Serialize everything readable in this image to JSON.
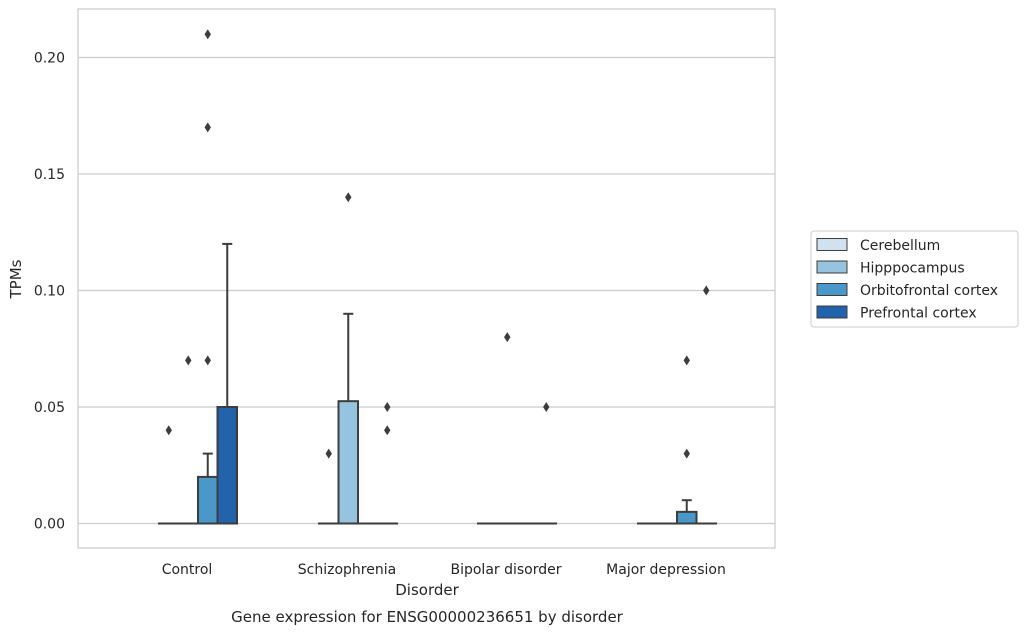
{
  "chart_data": {
    "type": "box",
    "title": "",
    "caption": "Gene expression for ENSG00000236651 by disorder",
    "xlabel": "Disorder",
    "ylabel": "TPMs",
    "ylim": [
      -0.01,
      0.22
    ],
    "yticks": [
      0.0,
      0.05,
      0.1,
      0.15,
      0.2
    ],
    "ytick_labels": [
      "0.00",
      "0.05",
      "0.10",
      "0.15",
      "0.20"
    ],
    "grid": "horizontal",
    "legend_position": "right",
    "categories": [
      "Control",
      "Schizophrenia",
      "Bipolar disorder",
      "Major depression"
    ],
    "series": [
      {
        "name": "Cerebellum",
        "color": "#d0e1f2",
        "boxes": [
          {
            "q1": 0,
            "median": 0,
            "q3": 0,
            "whisker_low": 0,
            "whisker_high": 0,
            "outliers": [
              0.04
            ]
          },
          {
            "q1": 0,
            "median": 0,
            "q3": 0,
            "whisker_low": 0,
            "whisker_high": 0,
            "outliers": [
              0.03
            ]
          },
          {
            "q1": 0,
            "median": 0,
            "q3": 0,
            "whisker_low": 0,
            "whisker_high": 0,
            "outliers": []
          },
          {
            "q1": 0,
            "median": 0,
            "q3": 0,
            "whisker_low": 0,
            "whisker_high": 0,
            "outliers": []
          }
        ]
      },
      {
        "name": "Hipppocampus",
        "color": "#94c4df",
        "boxes": [
          {
            "q1": 0,
            "median": 0,
            "q3": 0,
            "whisker_low": 0,
            "whisker_high": 0,
            "outliers": [
              0.07
            ]
          },
          {
            "q1": 0,
            "median": 0,
            "q3": 0.0525,
            "whisker_low": 0,
            "whisker_high": 0.09,
            "outliers": [
              0.14
            ]
          },
          {
            "q1": 0,
            "median": 0,
            "q3": 0,
            "whisker_low": 0,
            "whisker_high": 0,
            "outliers": [
              0.08
            ]
          },
          {
            "q1": 0,
            "median": 0,
            "q3": 0,
            "whisker_low": 0,
            "whisker_high": 0,
            "outliers": []
          }
        ]
      },
      {
        "name": "Orbitofrontal cortex",
        "color": "#4a98c9",
        "boxes": [
          {
            "q1": 0,
            "median": 0,
            "q3": 0.02,
            "whisker_low": 0,
            "whisker_high": 0.03,
            "outliers": [
              0.07,
              0.17,
              0.21
            ]
          },
          {
            "q1": 0,
            "median": 0,
            "q3": 0,
            "whisker_low": 0,
            "whisker_high": 0,
            "outliers": []
          },
          {
            "q1": 0,
            "median": 0,
            "q3": 0,
            "whisker_low": 0,
            "whisker_high": 0,
            "outliers": []
          },
          {
            "q1": 0,
            "median": 0,
            "q3": 0.005,
            "whisker_low": 0,
            "whisker_high": 0.01,
            "outliers": [
              0.03,
              0.07
            ]
          }
        ]
      },
      {
        "name": "Prefrontal cortex",
        "color": "#2164ab",
        "boxes": [
          {
            "q1": 0,
            "median": 0,
            "q3": 0.05,
            "whisker_low": 0,
            "whisker_high": 0.12,
            "outliers": []
          },
          {
            "q1": 0,
            "median": 0,
            "q3": 0,
            "whisker_low": 0,
            "whisker_high": 0,
            "outliers": [
              0.04,
              0.05
            ]
          },
          {
            "q1": 0,
            "median": 0,
            "q3": 0,
            "whisker_low": 0,
            "whisker_high": 0,
            "outliers": [
              0.05
            ]
          },
          {
            "q1": 0,
            "median": 0,
            "q3": 0,
            "whisker_low": 0,
            "whisker_high": 0,
            "outliers": [
              0.1
            ]
          }
        ]
      }
    ]
  }
}
